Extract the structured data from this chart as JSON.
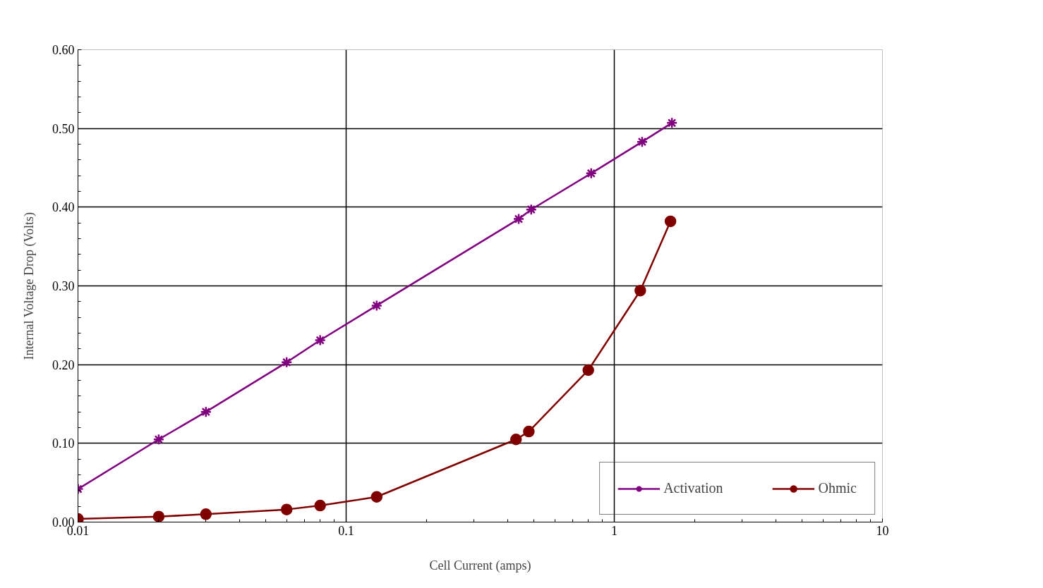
{
  "chart_data": {
    "type": "line",
    "xlabel": "Cell Current (amps)",
    "ylabel": "Internal Voltage Drop (Volts)",
    "log": "x",
    "grid": true,
    "legend": "bottom right",
    "line_style": "solid",
    "xlim": [
      0.01,
      10
    ],
    "xticks": [
      0.01,
      0.1,
      1,
      10
    ],
    "ylim": [
      0,
      0.6
    ],
    "yticks": [
      {
        "value": 0,
        "label": "0.00"
      },
      {
        "value": 0.1,
        "label": "0.10"
      },
      {
        "value": 0.2,
        "label": "0.20"
      },
      {
        "value": 0.3,
        "label": "0.30"
      },
      {
        "value": 0.4,
        "label": "0.40"
      },
      {
        "value": 0.5,
        "label": "0.50"
      },
      {
        "value": 0.6,
        "label": "0.60"
      }
    ],
    "series": [
      {
        "name": "Activation",
        "color": "#800080",
        "marker": "cross",
        "x": [
          0.01,
          0.02,
          0.03,
          0.06,
          0.08,
          0.13,
          0.44,
          0.49,
          0.82,
          1.27,
          1.64
        ],
        "values": [
          0.042,
          0.105,
          0.14,
          0.203,
          0.231,
          0.275,
          0.385,
          0.397,
          0.443,
          0.483,
          0.507
        ]
      },
      {
        "name": "Ohmic",
        "color": "#800000",
        "marker": "circle",
        "x": [
          0.01,
          0.02,
          0.03,
          0.06,
          0.08,
          0.13,
          0.43,
          0.48,
          0.8,
          1.25,
          1.62
        ],
        "values": [
          0.004,
          0.007,
          0.01,
          0.016,
          0.021,
          0.032,
          0.105,
          0.115,
          0.193,
          0.294,
          0.382
        ]
      }
    ]
  }
}
